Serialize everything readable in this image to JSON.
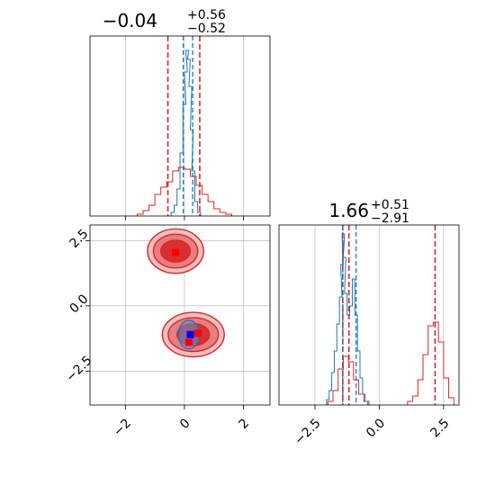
{
  "colors": {
    "red": "#d62728",
    "red_fill_light": "#f2b8b8",
    "red_fill_mid": "#e8777a",
    "red_fill_dark": "#d62728",
    "blue": "#1f77b4",
    "blue_fill": "#5b8fd6",
    "blue_marker": "#0000ff",
    "red_marker": "#ff0000",
    "grid": "#b0b0b0"
  },
  "chart_data": [
    {
      "type": "histogram",
      "panel": "top-left",
      "title_value": "−0.04",
      "title_upper": "+0.56",
      "title_lower": "−0.52",
      "xlim": [
        -3.2,
        2.9
      ],
      "x_ticks": [
        -2,
        0,
        2
      ],
      "vlines_red": [
        -0.56,
        0.52
      ],
      "vlines_blue": [
        -0.04,
        0.28
      ],
      "vline_blue_solid": 0.0,
      "series": [
        {
          "color": "red",
          "kind": "step",
          "x": [
            -1.5,
            -1.3,
            -1.1,
            -0.9,
            -0.7,
            -0.5,
            -0.3,
            -0.1,
            0.1,
            0.3,
            0.5,
            0.7,
            0.9,
            1.1,
            1.3,
            1.5
          ],
          "y": [
            0.01,
            0.03,
            0.06,
            0.12,
            0.16,
            0.19,
            0.25,
            0.27,
            0.26,
            0.22,
            0.17,
            0.12,
            0.08,
            0.04,
            0.02,
            0.01
          ]
        },
        {
          "color": "blue",
          "kind": "step",
          "x": [
            -0.4,
            -0.3,
            -0.2,
            -0.1,
            0.0,
            0.05,
            0.1,
            0.15,
            0.2,
            0.25,
            0.3,
            0.4,
            0.5
          ],
          "y": [
            0.02,
            0.06,
            0.15,
            0.35,
            0.62,
            0.8,
            0.92,
            0.87,
            0.72,
            0.48,
            0.25,
            0.08,
            0.02
          ]
        }
      ]
    },
    {
      "type": "contour",
      "panel": "bottom-left",
      "xlim": [
        -3.2,
        2.9
      ],
      "ylim": [
        -3.8,
        3.1
      ],
      "x_ticks": [
        -2,
        0,
        2
      ],
      "y_ticks": [
        2.5,
        0.0,
        -2.5
      ],
      "x_tick_labels": [
        "−2",
        "0",
        "2"
      ],
      "y_tick_labels": [
        "2.5",
        "0.0",
        "−2.5"
      ],
      "clusters_red": [
        {
          "x": -0.3,
          "y": 2.1,
          "rx": [
            0.95,
            0.75,
            0.5
          ],
          "ry": [
            0.85,
            0.65,
            0.42
          ]
        },
        {
          "x": 0.3,
          "y": -1.1,
          "rx": [
            1.05,
            0.85,
            0.55
          ],
          "ry": [
            0.85,
            0.65,
            0.42
          ]
        }
      ],
      "cluster_blue": {
        "x": 0.15,
        "y": -1.1,
        "rx": 0.35,
        "ry": 0.55
      },
      "markers_red": [
        {
          "x": -0.3,
          "y": 2.05
        },
        {
          "x": 0.15,
          "y": -1.4
        },
        {
          "x": 0.45,
          "y": -1.05
        }
      ],
      "marker_blue": {
        "x": 0.2,
        "y": -1.1
      }
    },
    {
      "type": "histogram",
      "panel": "bottom-right",
      "title_value": "1.66",
      "title_upper": "+0.51",
      "title_lower": "−2.91",
      "xlim": [
        -3.9,
        3.1
      ],
      "x_ticks": [
        -2.5,
        0.0,
        2.5
      ],
      "x_tick_labels": [
        "−2.5",
        "0.0",
        "2.5"
      ],
      "vlines_red": [
        -1.42,
        -1.18,
        2.17
      ],
      "vlines_blue": [
        -1.42,
        -0.9
      ],
      "series": [
        {
          "color": "red",
          "kind": "step",
          "x": [
            -1.9,
            -1.7,
            -1.5,
            -1.3,
            -1.1,
            -0.9,
            -0.7,
            -0.5,
            1.2,
            1.4,
            1.6,
            1.8,
            2.0,
            2.2,
            2.4,
            2.6,
            2.8
          ],
          "y": [
            0.02,
            0.08,
            0.2,
            0.27,
            0.24,
            0.14,
            0.06,
            0.02,
            0.02,
            0.05,
            0.14,
            0.28,
            0.44,
            0.46,
            0.35,
            0.15,
            0.04
          ]
        },
        {
          "color": "blue",
          "kind": "step",
          "x": [
            -2.0,
            -1.9,
            -1.8,
            -1.7,
            -1.6,
            -1.5,
            -1.45,
            -1.4,
            -1.35,
            -1.3,
            -1.2,
            -1.1,
            -1.0,
            -0.9,
            -0.8,
            -0.7,
            -0.6,
            -0.5
          ],
          "y": [
            0.03,
            0.08,
            0.18,
            0.3,
            0.45,
            0.6,
            0.78,
            0.95,
            0.82,
            0.62,
            0.5,
            0.55,
            0.7,
            0.5,
            0.3,
            0.15,
            0.06,
            0.02
          ]
        }
      ]
    }
  ]
}
